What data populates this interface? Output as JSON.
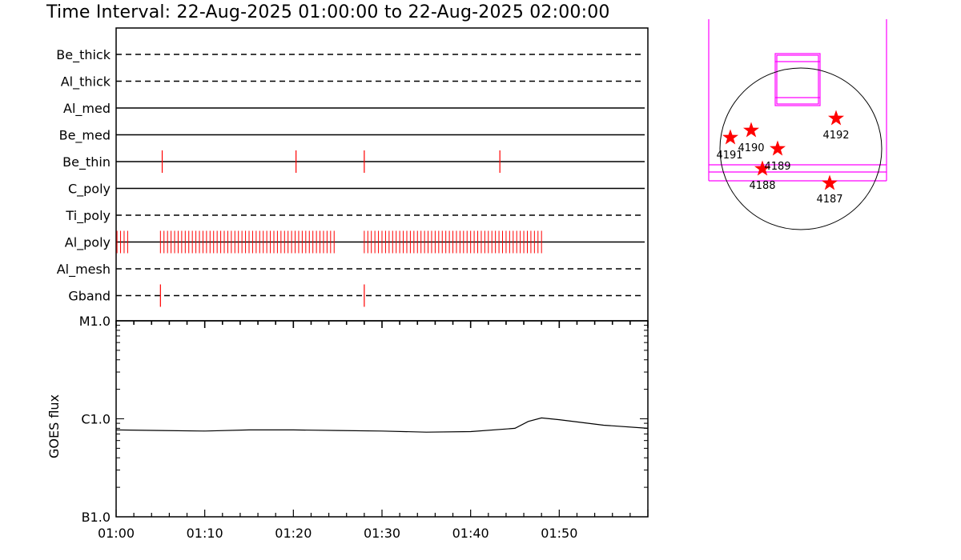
{
  "title": "Time Interval: 22-Aug-2025 01:00:00 to 22-Aug-2025 02:00:00",
  "chart_data": [
    {
      "type": "event-timeline",
      "x_range_minutes": [
        0,
        60
      ],
      "rows": [
        {
          "name": "Be_thick",
          "style": "dashed",
          "events": []
        },
        {
          "name": "Al_thick",
          "style": "dashed",
          "events": []
        },
        {
          "name": "Al_med",
          "style": "solid",
          "events": []
        },
        {
          "name": "Be_med",
          "style": "solid",
          "events": []
        },
        {
          "name": "Be_thin",
          "style": "solid",
          "events": [
            5.2,
            20.3,
            28.0,
            43.3
          ]
        },
        {
          "name": "C_poly",
          "style": "solid",
          "events": []
        },
        {
          "name": "Ti_poly",
          "style": "dashed",
          "events": []
        },
        {
          "name": "Al_poly",
          "style": "solid",
          "event_ranges": [
            [
              0.1,
              1.6
            ],
            [
              5.0,
              24.8
            ],
            [
              28.0,
              48.1
            ]
          ],
          "event_spacing_minutes": 0.4
        },
        {
          "name": "Al_mesh",
          "style": "dashed",
          "events": []
        },
        {
          "name": "Gband",
          "style": "dashed",
          "events": [
            5.0,
            28.0
          ]
        }
      ]
    },
    {
      "type": "line",
      "ylabel": "GOES flux",
      "yscale": "log",
      "ytick_labels": [
        "B1.0",
        "C1.0",
        "M1.0"
      ],
      "ylim": [
        1e-07,
        1e-05
      ],
      "xtick_labels": [
        "01:00",
        "01:10",
        "01:20",
        "01:30",
        "01:40",
        "01:50"
      ],
      "x_minutes": [
        0,
        5,
        10,
        15,
        20,
        25,
        30,
        35,
        40,
        45,
        46.5,
        48,
        50,
        55,
        60
      ],
      "y": [
        7.7e-07,
        7.6e-07,
        7.5e-07,
        7.7e-07,
        7.7e-07,
        7.6e-07,
        7.5e-07,
        7.3e-07,
        7.4e-07,
        8e-07,
        9.4e-07,
        1.02e-06,
        9.8e-07,
        8.6e-07,
        8e-07
      ]
    },
    {
      "type": "scatter",
      "description_free": true,
      "points": [
        {
          "label": "4187"
        },
        {
          "label": "4188"
        },
        {
          "label": "4189"
        },
        {
          "label": "4190"
        },
        {
          "label": "4191"
        },
        {
          "label": "4192"
        }
      ]
    }
  ],
  "colors": {
    "events": "#ff0000",
    "fov": "#ff00ff",
    "regions": "#ff0000",
    "axes": "#000000"
  }
}
